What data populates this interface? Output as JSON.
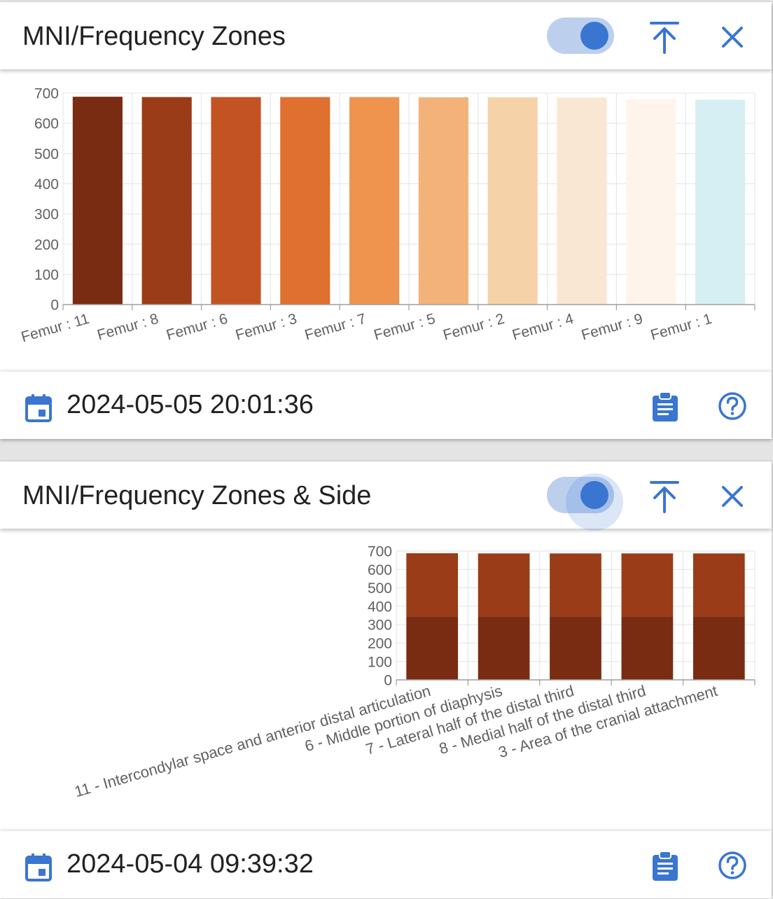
{
  "panels": [
    {
      "title": "MNI/Frequency Zones",
      "toggle_on": true,
      "timestamp": "2024-05-05 20:01:36",
      "chart_data": {
        "type": "bar",
        "categories": [
          "Femur : 11",
          "Femur : 8",
          "Femur : 6",
          "Femur : 3",
          "Femur : 7",
          "Femur : 5",
          "Femur : 2",
          "Femur : 4",
          "Femur : 9",
          "Femur : 1"
        ],
        "values": [
          688,
          687,
          687,
          687,
          687,
          686,
          686,
          685,
          679,
          678
        ],
        "colors": [
          "#7a2c13",
          "#9a3c18",
          "#c45324",
          "#df7030",
          "#ee944f",
          "#f2b27a",
          "#f6d2a8",
          "#f9e6d3",
          "#fef4ec",
          "#d6eff2"
        ],
        "yticks": [
          0,
          100,
          200,
          300,
          400,
          500,
          600,
          700
        ],
        "ylim": [
          0,
          700
        ],
        "grid": true
      }
    },
    {
      "title": "MNI/Frequency Zones & Side",
      "toggle_on": true,
      "timestamp": "2024-05-04 09:39:32",
      "chart_data": {
        "type": "bar",
        "stacked": true,
        "categories": [
          "11 - Intercondylar space and anterior distal articulation",
          "6 - Middle portion of diaphysis",
          "7 - Lateral half of the distal third",
          "8 - Medial half of the distal third",
          "3 - Area of the cranial attachment"
        ],
        "series": [
          {
            "values": [
              344,
              344,
              344,
              344,
              344
            ],
            "color": "#7a2c13"
          },
          {
            "values": [
              344,
              343,
              343,
              343,
              343
            ],
            "color": "#9a3c18"
          }
        ],
        "yticks": [
          0,
          100,
          200,
          300,
          400,
          500,
          600,
          700
        ],
        "ylim": [
          0,
          700
        ],
        "grid": true
      }
    }
  ],
  "icons": {
    "toggle": "toggle-switch",
    "collapse": "arrow-collapse-up-icon",
    "close": "close-icon",
    "calendar": "calendar-icon",
    "report": "clipboard-text-icon",
    "help": "help-circle-icon"
  }
}
